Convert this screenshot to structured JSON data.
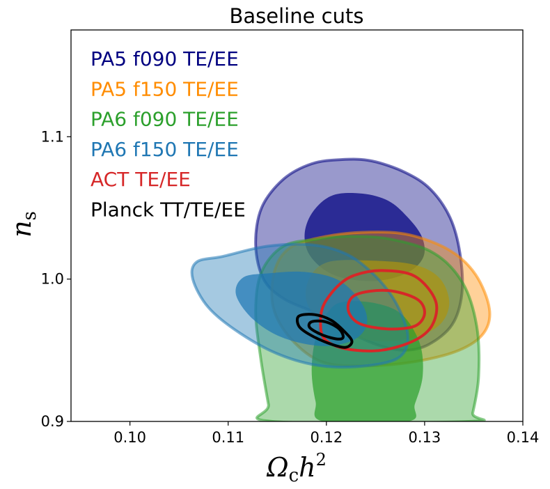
{
  "chart_data": {
    "type": "contour",
    "title": "Baseline cuts",
    "xlabel": "Ωch²",
    "ylabel": "ns",
    "xlim": [
      0.094,
      0.14
    ],
    "ylim": [
      0.9,
      1.175
    ],
    "xticks": [
      0.1,
      0.11,
      0.12,
      0.13,
      0.14
    ],
    "xtick_labels": [
      "0.10",
      "0.11",
      "0.12",
      "0.13",
      "0.14"
    ],
    "yticks": [
      0.9,
      1.0,
      1.1
    ],
    "ytick_labels": [
      "0.9",
      "1.0",
      "1.1"
    ],
    "legend_position": "top-left",
    "series": [
      {
        "name": "PA5 f090 TE/EE",
        "color": "#000080",
        "style": "filled",
        "center": [
          0.1227,
          1.024
        ],
        "inner": [
          [
            0.1207,
            1.059
          ],
          [
            0.1237,
            1.06
          ],
          [
            0.1263,
            1.055
          ],
          [
            0.1282,
            1.044
          ],
          [
            0.1297,
            1.03
          ],
          [
            0.1299,
            1.016
          ],
          [
            0.1284,
            1.005
          ],
          [
            0.1255,
            0.999
          ],
          [
            0.1222,
            1.0
          ],
          [
            0.1199,
            1.006
          ],
          [
            0.1182,
            1.018
          ],
          [
            0.1178,
            1.033
          ],
          [
            0.1187,
            1.048
          ]
        ],
        "outer": [
          [
            0.1216,
            1.084
          ],
          [
            0.1246,
            1.083
          ],
          [
            0.128,
            1.075
          ],
          [
            0.1306,
            1.063
          ],
          [
            0.1326,
            1.043
          ],
          [
            0.1336,
            1.018
          ],
          [
            0.1338,
            0.99
          ],
          [
            0.1328,
            0.968
          ],
          [
            0.1304,
            0.954
          ],
          [
            0.1279,
            0.95
          ],
          [
            0.1251,
            0.954
          ],
          [
            0.122,
            0.964
          ],
          [
            0.119,
            0.976
          ],
          [
            0.1157,
            0.986
          ],
          [
            0.1136,
            1.0
          ],
          [
            0.1128,
            1.024
          ],
          [
            0.1134,
            1.05
          ],
          [
            0.1156,
            1.07
          ],
          [
            0.1185,
            1.081
          ]
        ]
      },
      {
        "name": "PA5 f150 TE/EE",
        "color": "#ff8c00",
        "style": "filled",
        "center": [
          0.125,
          0.99
        ],
        "inner": [
          [
            0.1202,
            1.012
          ],
          [
            0.1245,
            1.013
          ],
          [
            0.129,
            1.01
          ],
          [
            0.1316,
            1.0
          ],
          [
            0.1325,
            0.982
          ],
          [
            0.1312,
            0.966
          ],
          [
            0.1275,
            0.957
          ],
          [
            0.1235,
            0.958
          ],
          [
            0.1198,
            0.968
          ],
          [
            0.118,
            0.984
          ],
          [
            0.1183,
            1.001
          ]
        ],
        "outer": [
          [
            0.12,
            1.03
          ],
          [
            0.1244,
            1.033
          ],
          [
            0.1285,
            1.031
          ],
          [
            0.1326,
            1.02
          ],
          [
            0.1352,
            1.003
          ],
          [
            0.1366,
            0.979
          ],
          [
            0.136,
            0.962
          ],
          [
            0.1335,
            0.95
          ],
          [
            0.129,
            0.942
          ],
          [
            0.1238,
            0.939
          ],
          [
            0.1195,
            0.942
          ],
          [
            0.1164,
            0.958
          ],
          [
            0.1146,
            0.98
          ],
          [
            0.1147,
            1.005
          ],
          [
            0.1163,
            1.022
          ]
        ]
      },
      {
        "name": "PA6 f090 TE/EE",
        "color": "#2ca02c",
        "style": "filled",
        "center": [
          0.1243,
          0.95
        ],
        "inner": [
          [
            0.1218,
            0.984
          ],
          [
            0.125,
            0.983
          ],
          [
            0.1277,
            0.975
          ],
          [
            0.1295,
            0.955
          ],
          [
            0.1298,
            0.932
          ],
          [
            0.129,
            0.912
          ],
          [
            0.1283,
            0.9
          ],
          [
            0.1197,
            0.9
          ],
          [
            0.1189,
            0.914
          ],
          [
            0.1185,
            0.937
          ],
          [
            0.119,
            0.961
          ],
          [
            0.1203,
            0.978
          ]
        ],
        "outer": [
          [
            0.119,
            1.028
          ],
          [
            0.1224,
            1.03
          ],
          [
            0.1266,
            1.028
          ],
          [
            0.131,
            1.018
          ],
          [
            0.1339,
            0.997
          ],
          [
            0.1353,
            0.967
          ],
          [
            0.1355,
            0.932
          ],
          [
            0.1349,
            0.906
          ],
          [
            0.1345,
            0.9
          ],
          [
            0.1145,
            0.9
          ],
          [
            0.1141,
            0.912
          ],
          [
            0.1133,
            0.945
          ],
          [
            0.1128,
            0.978
          ],
          [
            0.1134,
            1.005
          ],
          [
            0.1156,
            1.023
          ]
        ]
      },
      {
        "name": "PA6 f150 TE/EE",
        "color": "#1f77b4",
        "style": "filled",
        "center": [
          0.117,
          0.977
        ],
        "inner": [
          [
            0.114,
            1.004
          ],
          [
            0.1178,
            1.005
          ],
          [
            0.1213,
            0.999
          ],
          [
            0.1236,
            0.983
          ],
          [
            0.1241,
            0.968
          ],
          [
            0.1227,
            0.957
          ],
          [
            0.1195,
            0.953
          ],
          [
            0.1155,
            0.959
          ],
          [
            0.1125,
            0.972
          ],
          [
            0.1108,
            0.989
          ],
          [
            0.1115,
            1.001
          ]
        ],
        "outer": [
          [
            0.1095,
            1.016
          ],
          [
            0.1139,
            1.023
          ],
          [
            0.1186,
            1.024
          ],
          [
            0.1222,
            1.017
          ],
          [
            0.125,
            1.002
          ],
          [
            0.1271,
            0.983
          ],
          [
            0.1283,
            0.96
          ],
          [
            0.1274,
            0.945
          ],
          [
            0.124,
            0.939
          ],
          [
            0.1195,
            0.939
          ],
          [
            0.1152,
            0.947
          ],
          [
            0.1112,
            0.962
          ],
          [
            0.108,
            0.98
          ],
          [
            0.1064,
            1.0
          ],
          [
            0.1068,
            1.012
          ]
        ]
      },
      {
        "name": "ACT TE/EE",
        "color": "#d62728",
        "style": "lines",
        "center": [
          0.126,
          0.975
        ],
        "inner": [
          [
            0.123,
            0.989
          ],
          [
            0.1262,
            0.992
          ],
          [
            0.1292,
            0.986
          ],
          [
            0.13,
            0.976
          ],
          [
            0.129,
            0.967
          ],
          [
            0.1262,
            0.965
          ],
          [
            0.1233,
            0.969
          ],
          [
            0.1222,
            0.979
          ]
        ],
        "outer": [
          [
            0.123,
            1.003
          ],
          [
            0.1257,
            1.006
          ],
          [
            0.129,
            1.002
          ],
          [
            0.1311,
            0.985
          ],
          [
            0.1308,
            0.968
          ],
          [
            0.129,
            0.957
          ],
          [
            0.1256,
            0.95
          ],
          [
            0.122,
            0.951
          ],
          [
            0.1198,
            0.958
          ],
          [
            0.1194,
            0.971
          ],
          [
            0.1198,
            0.983
          ],
          [
            0.1213,
            0.996
          ]
        ]
      },
      {
        "name": "Planck TT/TE/EE",
        "color": "#000000",
        "style": "lines",
        "center": [
          0.1197,
          0.966
        ],
        "inner": [
          [
            0.1185,
            0.97
          ],
          [
            0.1199,
            0.97
          ],
          [
            0.1213,
            0.965
          ],
          [
            0.1217,
            0.959
          ],
          [
            0.121,
            0.958
          ],
          [
            0.1195,
            0.961
          ],
          [
            0.1183,
            0.966
          ]
        ],
        "outer": [
          [
            0.1172,
            0.974
          ],
          [
            0.1188,
            0.975
          ],
          [
            0.1205,
            0.971
          ],
          [
            0.122,
            0.962
          ],
          [
            0.1226,
            0.956
          ],
          [
            0.1219,
            0.952
          ],
          [
            0.1202,
            0.955
          ],
          [
            0.1183,
            0.961
          ],
          [
            0.1172,
            0.967
          ]
        ]
      }
    ]
  }
}
